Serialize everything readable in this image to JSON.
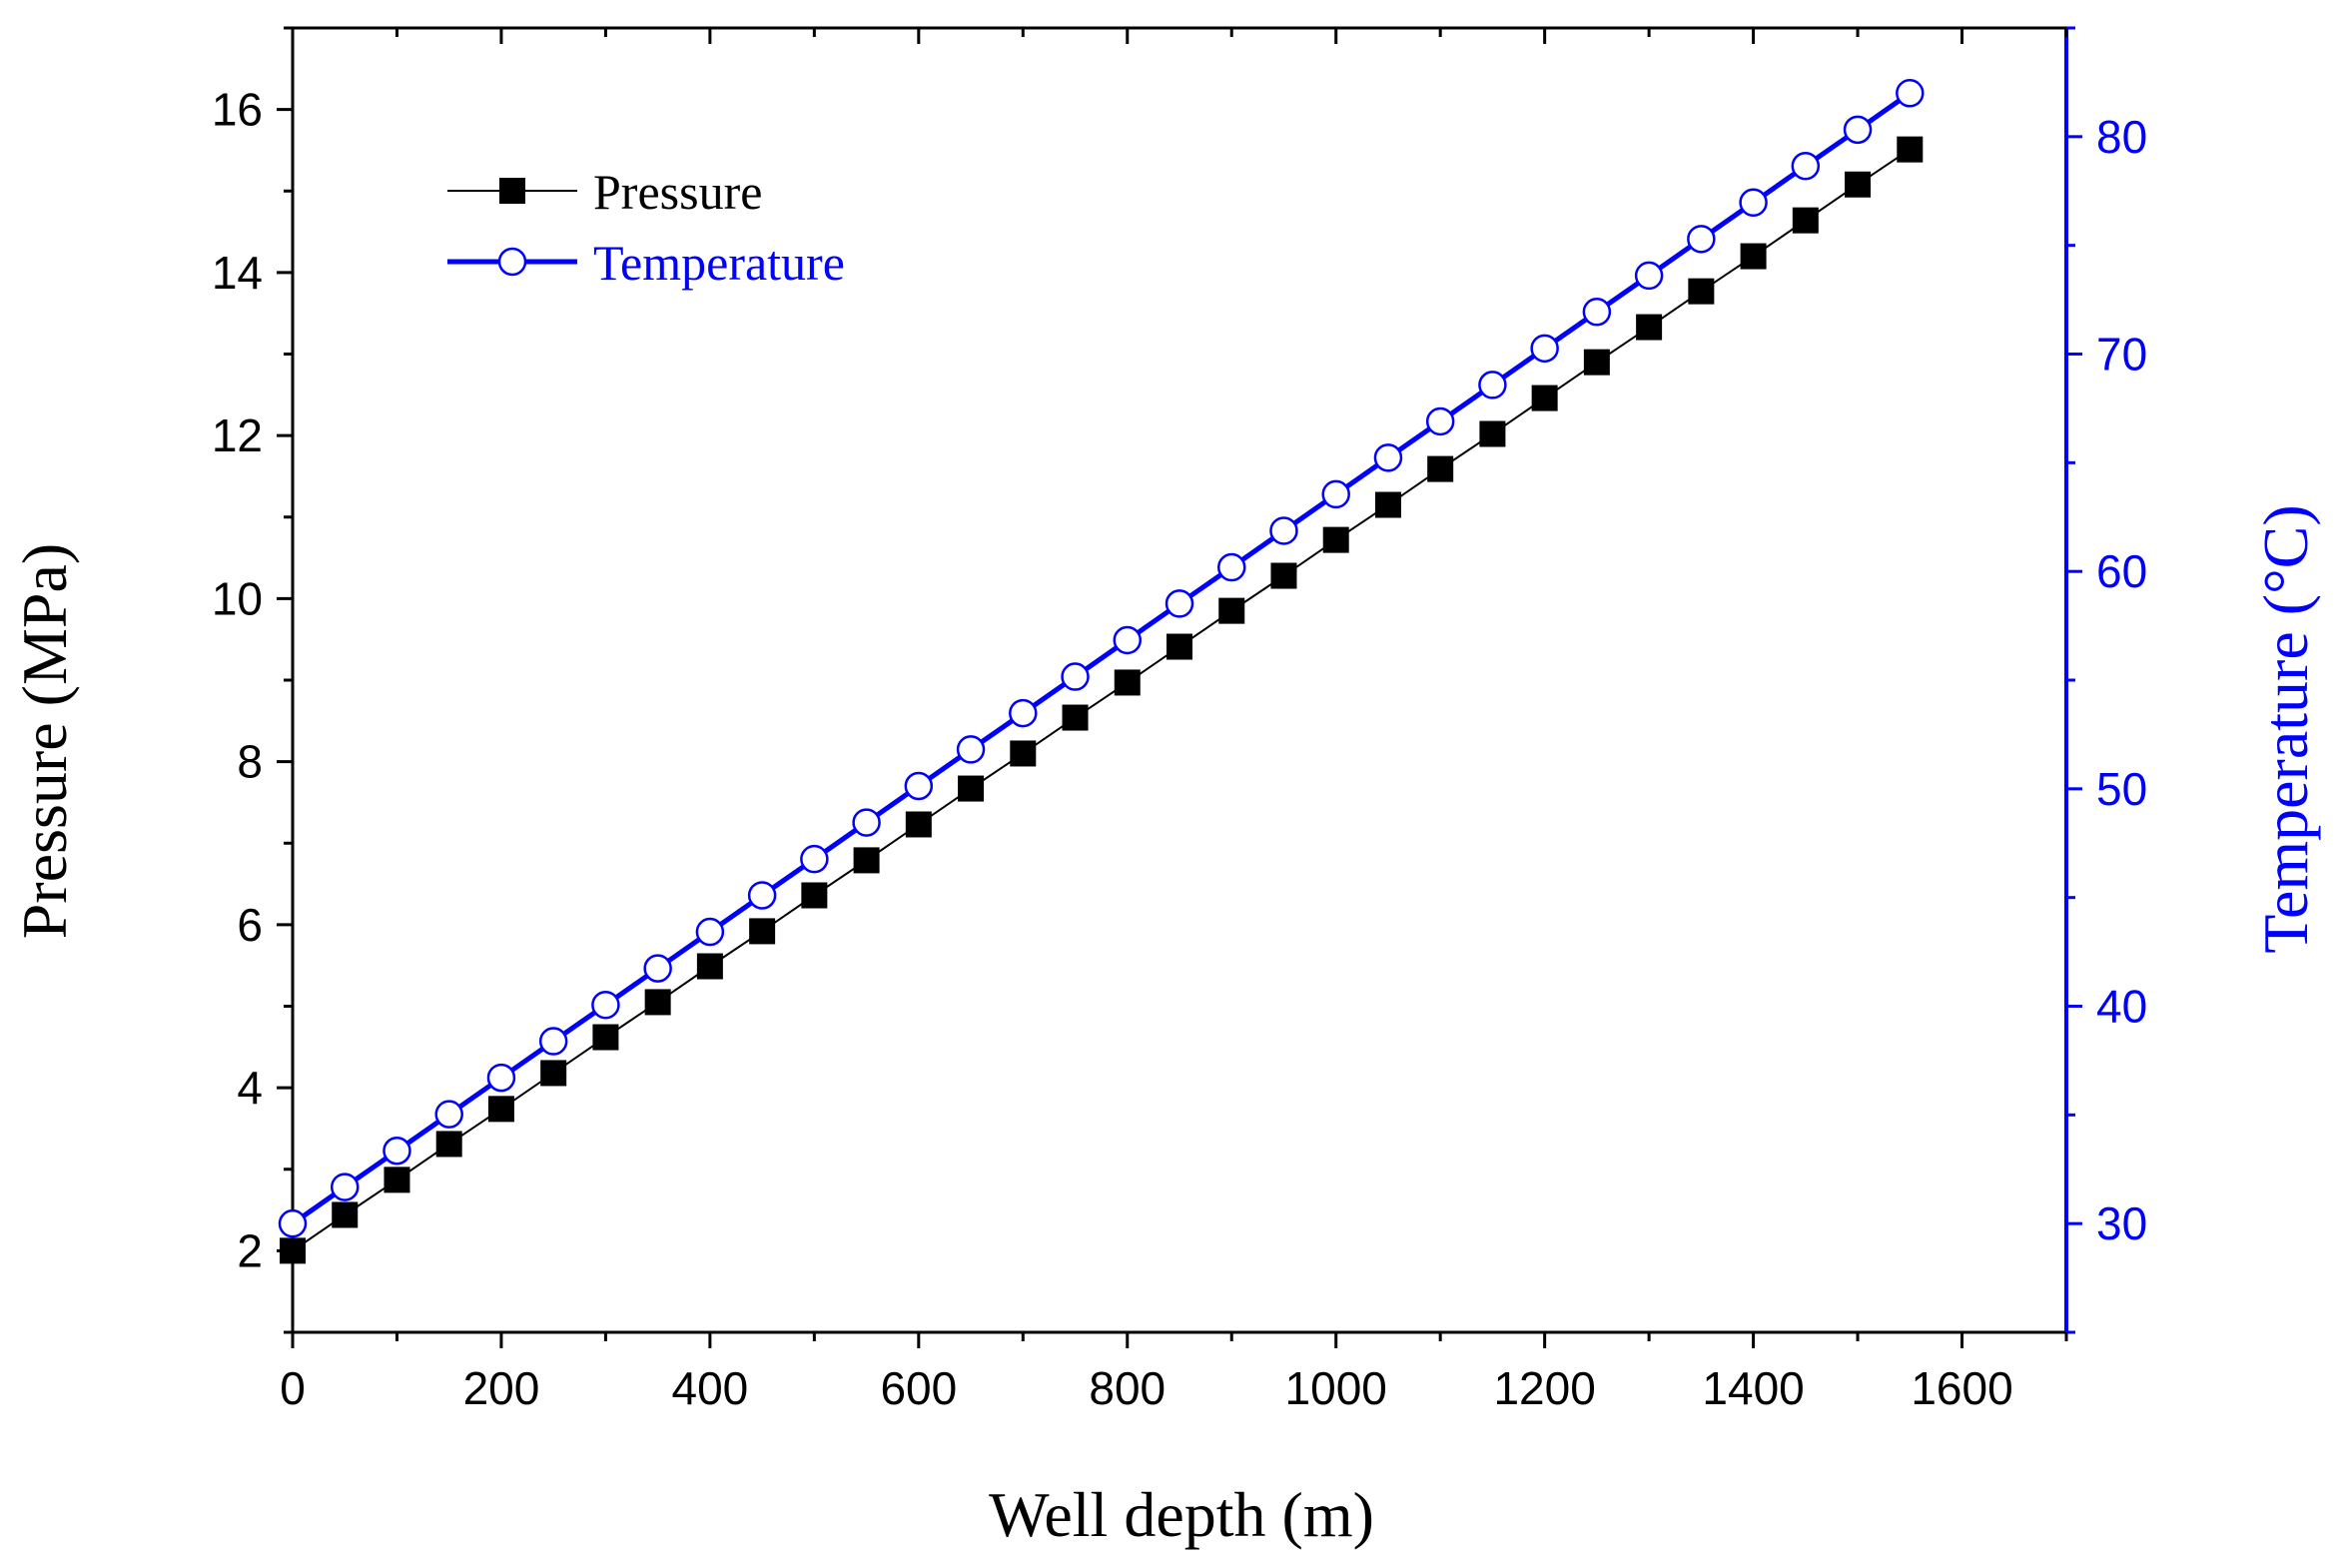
{
  "chart_data": {
    "type": "line",
    "xlabel": "Well depth (m)",
    "ylabel": "Pressure (MPa)",
    "y2label": "Temperature (°C)",
    "xlim": [
      0,
      1700
    ],
    "ylim": [
      1,
      17
    ],
    "y2lim": [
      25,
      85
    ],
    "x_ticks": [
      "0",
      "200",
      "400",
      "600",
      "800",
      "1000",
      "1200",
      "1400",
      "1600"
    ],
    "y_ticks": [
      "2",
      "4",
      "6",
      "8",
      "10",
      "12",
      "14",
      "16"
    ],
    "y2_ticks": [
      "30",
      "40",
      "50",
      "60",
      "70",
      "80"
    ],
    "x": [
      0,
      50,
      100,
      150,
      200,
      250,
      300,
      350,
      400,
      450,
      500,
      550,
      600,
      650,
      700,
      750,
      800,
      850,
      900,
      950,
      1000,
      1050,
      1100,
      1150,
      1200,
      1250,
      1300,
      1350,
      1400,
      1450,
      1500,
      1550
    ],
    "series": [
      {
        "name": "Pressure",
        "axis": "left",
        "color": "#000000",
        "marker": "filled-square",
        "values": [
          2.0,
          2.44,
          2.87,
          3.31,
          3.74,
          4.18,
          4.62,
          5.05,
          5.49,
          5.92,
          6.36,
          6.79,
          7.23,
          7.67,
          8.1,
          8.54,
          8.97,
          9.41,
          9.85,
          10.28,
          10.72,
          11.15,
          11.59,
          12.02,
          12.46,
          12.9,
          13.33,
          13.77,
          14.2,
          14.64,
          15.08,
          15.51
        ]
      },
      {
        "name": "Temperature",
        "axis": "right",
        "color": "#0000ff",
        "marker": "open-circle",
        "values": [
          30.0,
          31.68,
          33.35,
          35.03,
          36.71,
          38.39,
          40.06,
          41.74,
          43.42,
          45.1,
          46.77,
          48.45,
          50.13,
          51.81,
          53.48,
          55.16,
          56.84,
          58.52,
          60.19,
          61.87,
          63.55,
          65.23,
          66.9,
          68.58,
          70.26,
          71.94,
          73.61,
          75.29,
          76.97,
          78.65,
          80.32,
          82.0
        ]
      }
    ],
    "legend": {
      "position": "top-left",
      "entries": [
        "Pressure",
        "Temperature"
      ]
    },
    "grid": false
  }
}
